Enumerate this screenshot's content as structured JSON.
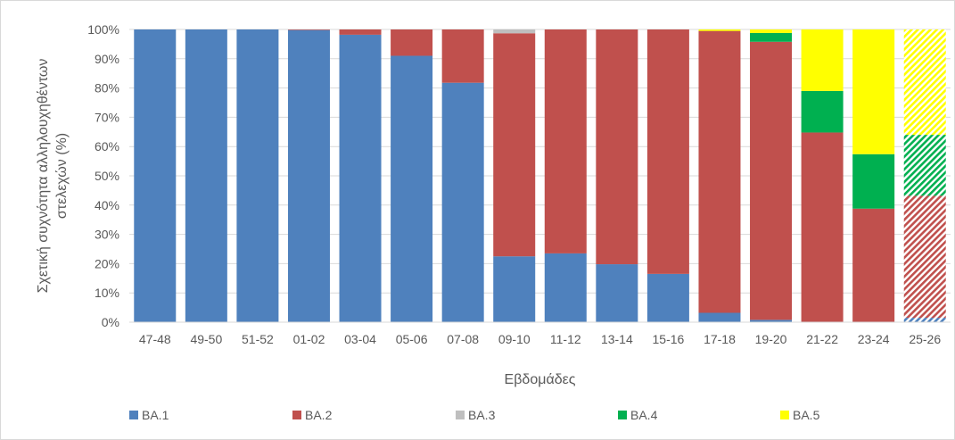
{
  "chart_data": {
    "type": "bar",
    "stacked": true,
    "title": "",
    "xlabel": "Εβδομάδες",
    "ylabel_lines": [
      "Σχετική συχνότητα αλληλουχηθέντων",
      "στελεχών (%)"
    ],
    "ylim": [
      0,
      100
    ],
    "yticks": [
      "0%",
      "10%",
      "20%",
      "30%",
      "40%",
      "50%",
      "60%",
      "70%",
      "80%",
      "90%",
      "100%"
    ],
    "grid": "horizontal",
    "legend_position": "bottom",
    "categories": [
      "47-48",
      "49-50",
      "51-52",
      "01-02",
      "03-04",
      "05-06",
      "07-08",
      "09-10",
      "11-12",
      "13-14",
      "15-16",
      "17-18",
      "19-20",
      "21-22",
      "23-24",
      "25-26"
    ],
    "hatched_categories": [
      "25-26"
    ],
    "series": [
      {
        "name": "BA.1",
        "color": "#4f81bd",
        "values": [
          100,
          100,
          100,
          99.8,
          98.2,
          91,
          81.8,
          22.5,
          23.5,
          19.8,
          16.5,
          3.2,
          0.8,
          0,
          0,
          1.5
        ]
      },
      {
        "name": "BA.2",
        "color": "#c0504d",
        "values": [
          0,
          0,
          0,
          0.2,
          1.8,
          9,
          18.2,
          76.2,
          76.5,
          80.2,
          83.5,
          96.3,
          95,
          64.8,
          38.8,
          41.7
        ]
      },
      {
        "name": "BA.3",
        "color": "#bfbfbf",
        "values": [
          0,
          0,
          0,
          0,
          0,
          0,
          0,
          1.3,
          0,
          0,
          0,
          0,
          0,
          0,
          0,
          0
        ]
      },
      {
        "name": "BA.4",
        "color": "#00b050",
        "values": [
          0,
          0,
          0,
          0,
          0,
          0,
          0,
          0,
          0,
          0,
          0,
          0,
          3,
          14.2,
          18.6,
          20.8
        ]
      },
      {
        "name": "BA.5",
        "color": "#ffff00",
        "values": [
          0,
          0,
          0,
          0,
          0,
          0,
          0,
          0,
          0,
          0,
          0,
          0.5,
          1.2,
          21,
          42.6,
          36
        ]
      }
    ]
  }
}
